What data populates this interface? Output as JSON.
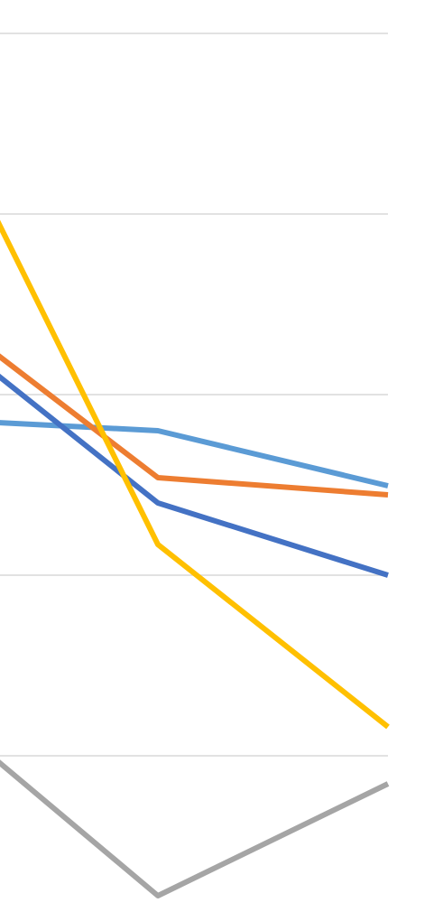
{
  "chart_data": {
    "type": "line",
    "categories": [
      null,
      null,
      null
    ],
    "series": [
      {
        "color": "#a5a5a5",
        "values": [
          0.295,
          -0.775,
          -0.155
        ]
      },
      {
        "color": "#5b9bd5",
        "values": [
          1.865,
          1.8,
          1.495
        ]
      },
      {
        "color": "#ed7d31",
        "values": [
          2.515,
          1.54,
          1.445
        ]
      },
      {
        "color": "#4472c4",
        "values": [
          2.415,
          1.4,
          1.0
        ]
      },
      {
        "color": "#ffc000",
        "values": [
          3.74,
          1.17,
          0.16
        ]
      }
    ],
    "ylim": [
      -0.865,
      4.185
    ],
    "yticks": [
      0,
      1,
      2,
      3,
      4
    ],
    "grid": true
  }
}
